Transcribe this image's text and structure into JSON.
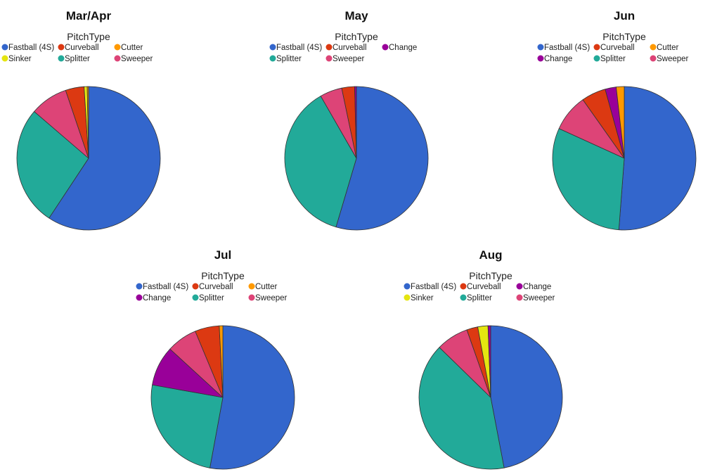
{
  "colors": {
    "Fastball (4S)": "#3366CC",
    "Curveball": "#DC3912",
    "Cutter": "#FF9900",
    "Sinker": "#E5E510",
    "Splitter": "#22AA99",
    "Sweeper": "#DD4477",
    "Change": "#990099"
  },
  "chart_data": [
    {
      "type": "pie",
      "title": "Mar/Apr",
      "legend_title": "PitchType",
      "legend_placement": "top",
      "legend": [
        "Fastball (4S)",
        "Curveball",
        "Cutter",
        "Sinker",
        "Splitter",
        "Sweeper"
      ],
      "slices": [
        {
          "label": "Fastball (4S)",
          "value": 59.3
        },
        {
          "label": "Splitter",
          "value": 27.0
        },
        {
          "label": "Sweeper",
          "value": 8.5
        },
        {
          "label": "Curveball",
          "value": 4.2
        },
        {
          "label": "Sinker",
          "value": 0.7
        },
        {
          "label": "Cutter",
          "value": 0.3
        }
      ]
    },
    {
      "type": "pie",
      "title": "May",
      "legend_title": "PitchType",
      "legend_placement": "top",
      "legend": [
        "Fastball (4S)",
        "Curveball",
        "Change",
        "Splitter",
        "Sweeper"
      ],
      "slices": [
        {
          "label": "Fastball (4S)",
          "value": 54.6
        },
        {
          "label": "Splitter",
          "value": 37.1
        },
        {
          "label": "Sweeper",
          "value": 5.0
        },
        {
          "label": "Curveball",
          "value": 2.9
        },
        {
          "label": "Change",
          "value": 0.4
        }
      ]
    },
    {
      "type": "pie",
      "title": "Jun",
      "legend_title": "PitchType",
      "legend_placement": "top",
      "legend": [
        "Fastball (4S)",
        "Curveball",
        "Cutter",
        "Change",
        "Splitter",
        "Sweeper"
      ],
      "slices": [
        {
          "label": "Fastball (4S)",
          "value": 51.2
        },
        {
          "label": "Splitter",
          "value": 30.6
        },
        {
          "label": "Sweeper",
          "value": 8.4
        },
        {
          "label": "Curveball",
          "value": 5.5
        },
        {
          "label": "Change",
          "value": 2.5
        },
        {
          "label": "Cutter",
          "value": 1.8
        }
      ]
    },
    {
      "type": "pie",
      "title": "Jul",
      "legend_title": "PitchType",
      "legend_placement": "top",
      "legend": [
        "Fastball (4S)",
        "Curveball",
        "Cutter",
        "Change",
        "Splitter",
        "Sweeper"
      ],
      "slices": [
        {
          "label": "Fastball (4S)",
          "value": 52.9
        },
        {
          "label": "Splitter",
          "value": 24.9
        },
        {
          "label": "Change",
          "value": 9.0
        },
        {
          "label": "Sweeper",
          "value": 6.9
        },
        {
          "label": "Curveball",
          "value": 5.5
        },
        {
          "label": "Cutter",
          "value": 0.8
        }
      ]
    },
    {
      "type": "pie",
      "title": "Aug",
      "legend_title": "PitchType",
      "legend_placement": "top",
      "legend": [
        "Fastball (4S)",
        "Curveball",
        "Change",
        "Sinker",
        "Splitter",
        "Sweeper"
      ],
      "slices": [
        {
          "label": "Fastball (4S)",
          "value": 47.0
        },
        {
          "label": "Splitter",
          "value": 40.3
        },
        {
          "label": "Sweeper",
          "value": 7.3
        },
        {
          "label": "Curveball",
          "value": 2.5
        },
        {
          "label": "Sinker",
          "value": 2.3
        },
        {
          "label": "Change",
          "value": 0.6
        }
      ]
    }
  ]
}
